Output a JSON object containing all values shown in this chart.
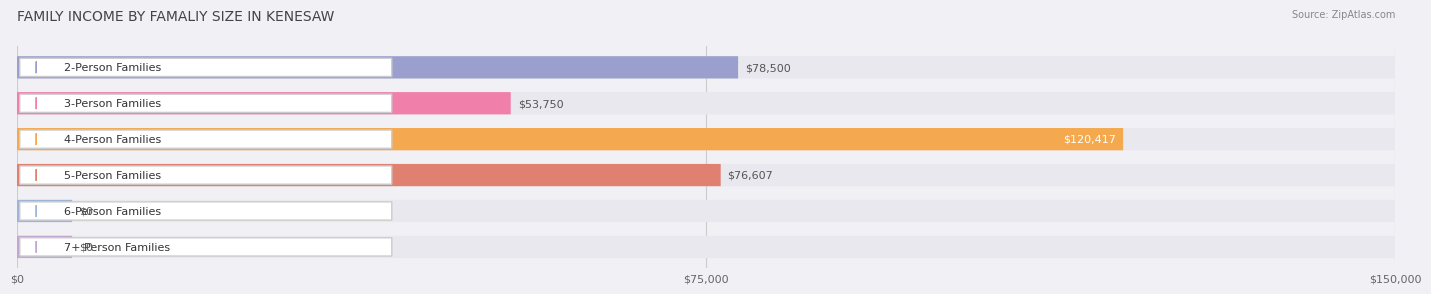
{
  "title": "FAMILY INCOME BY FAMALIY SIZE IN KENESAW",
  "source": "Source: ZipAtlas.com",
  "categories": [
    "2-Person Families",
    "3-Person Families",
    "4-Person Families",
    "5-Person Families",
    "6-Person Families",
    "7+ Person Families"
  ],
  "values": [
    78500,
    53750,
    120417,
    76607,
    0,
    0
  ],
  "bar_colors": [
    "#9b9fce",
    "#f07faa",
    "#f5a94e",
    "#e08070",
    "#a0b4d8",
    "#c0a8d0"
  ],
  "label_colors": [
    "#555555",
    "#555555",
    "#ffffff",
    "#555555",
    "#555555",
    "#555555"
  ],
  "value_labels": [
    "$78,500",
    "$53,750",
    "$120,417",
    "$76,607",
    "$0",
    "$0"
  ],
  "xlim": [
    0,
    150000
  ],
  "xticks": [
    0,
    75000,
    150000
  ],
  "xticklabels": [
    "$0",
    "$75,000",
    "$150,000"
  ],
  "background_color": "#f0f0f5",
  "bar_background_color": "#e8e8ee",
  "title_fontsize": 10,
  "tick_fontsize": 8,
  "label_fontsize": 8,
  "value_fontsize": 8,
  "source_fontsize": 7
}
